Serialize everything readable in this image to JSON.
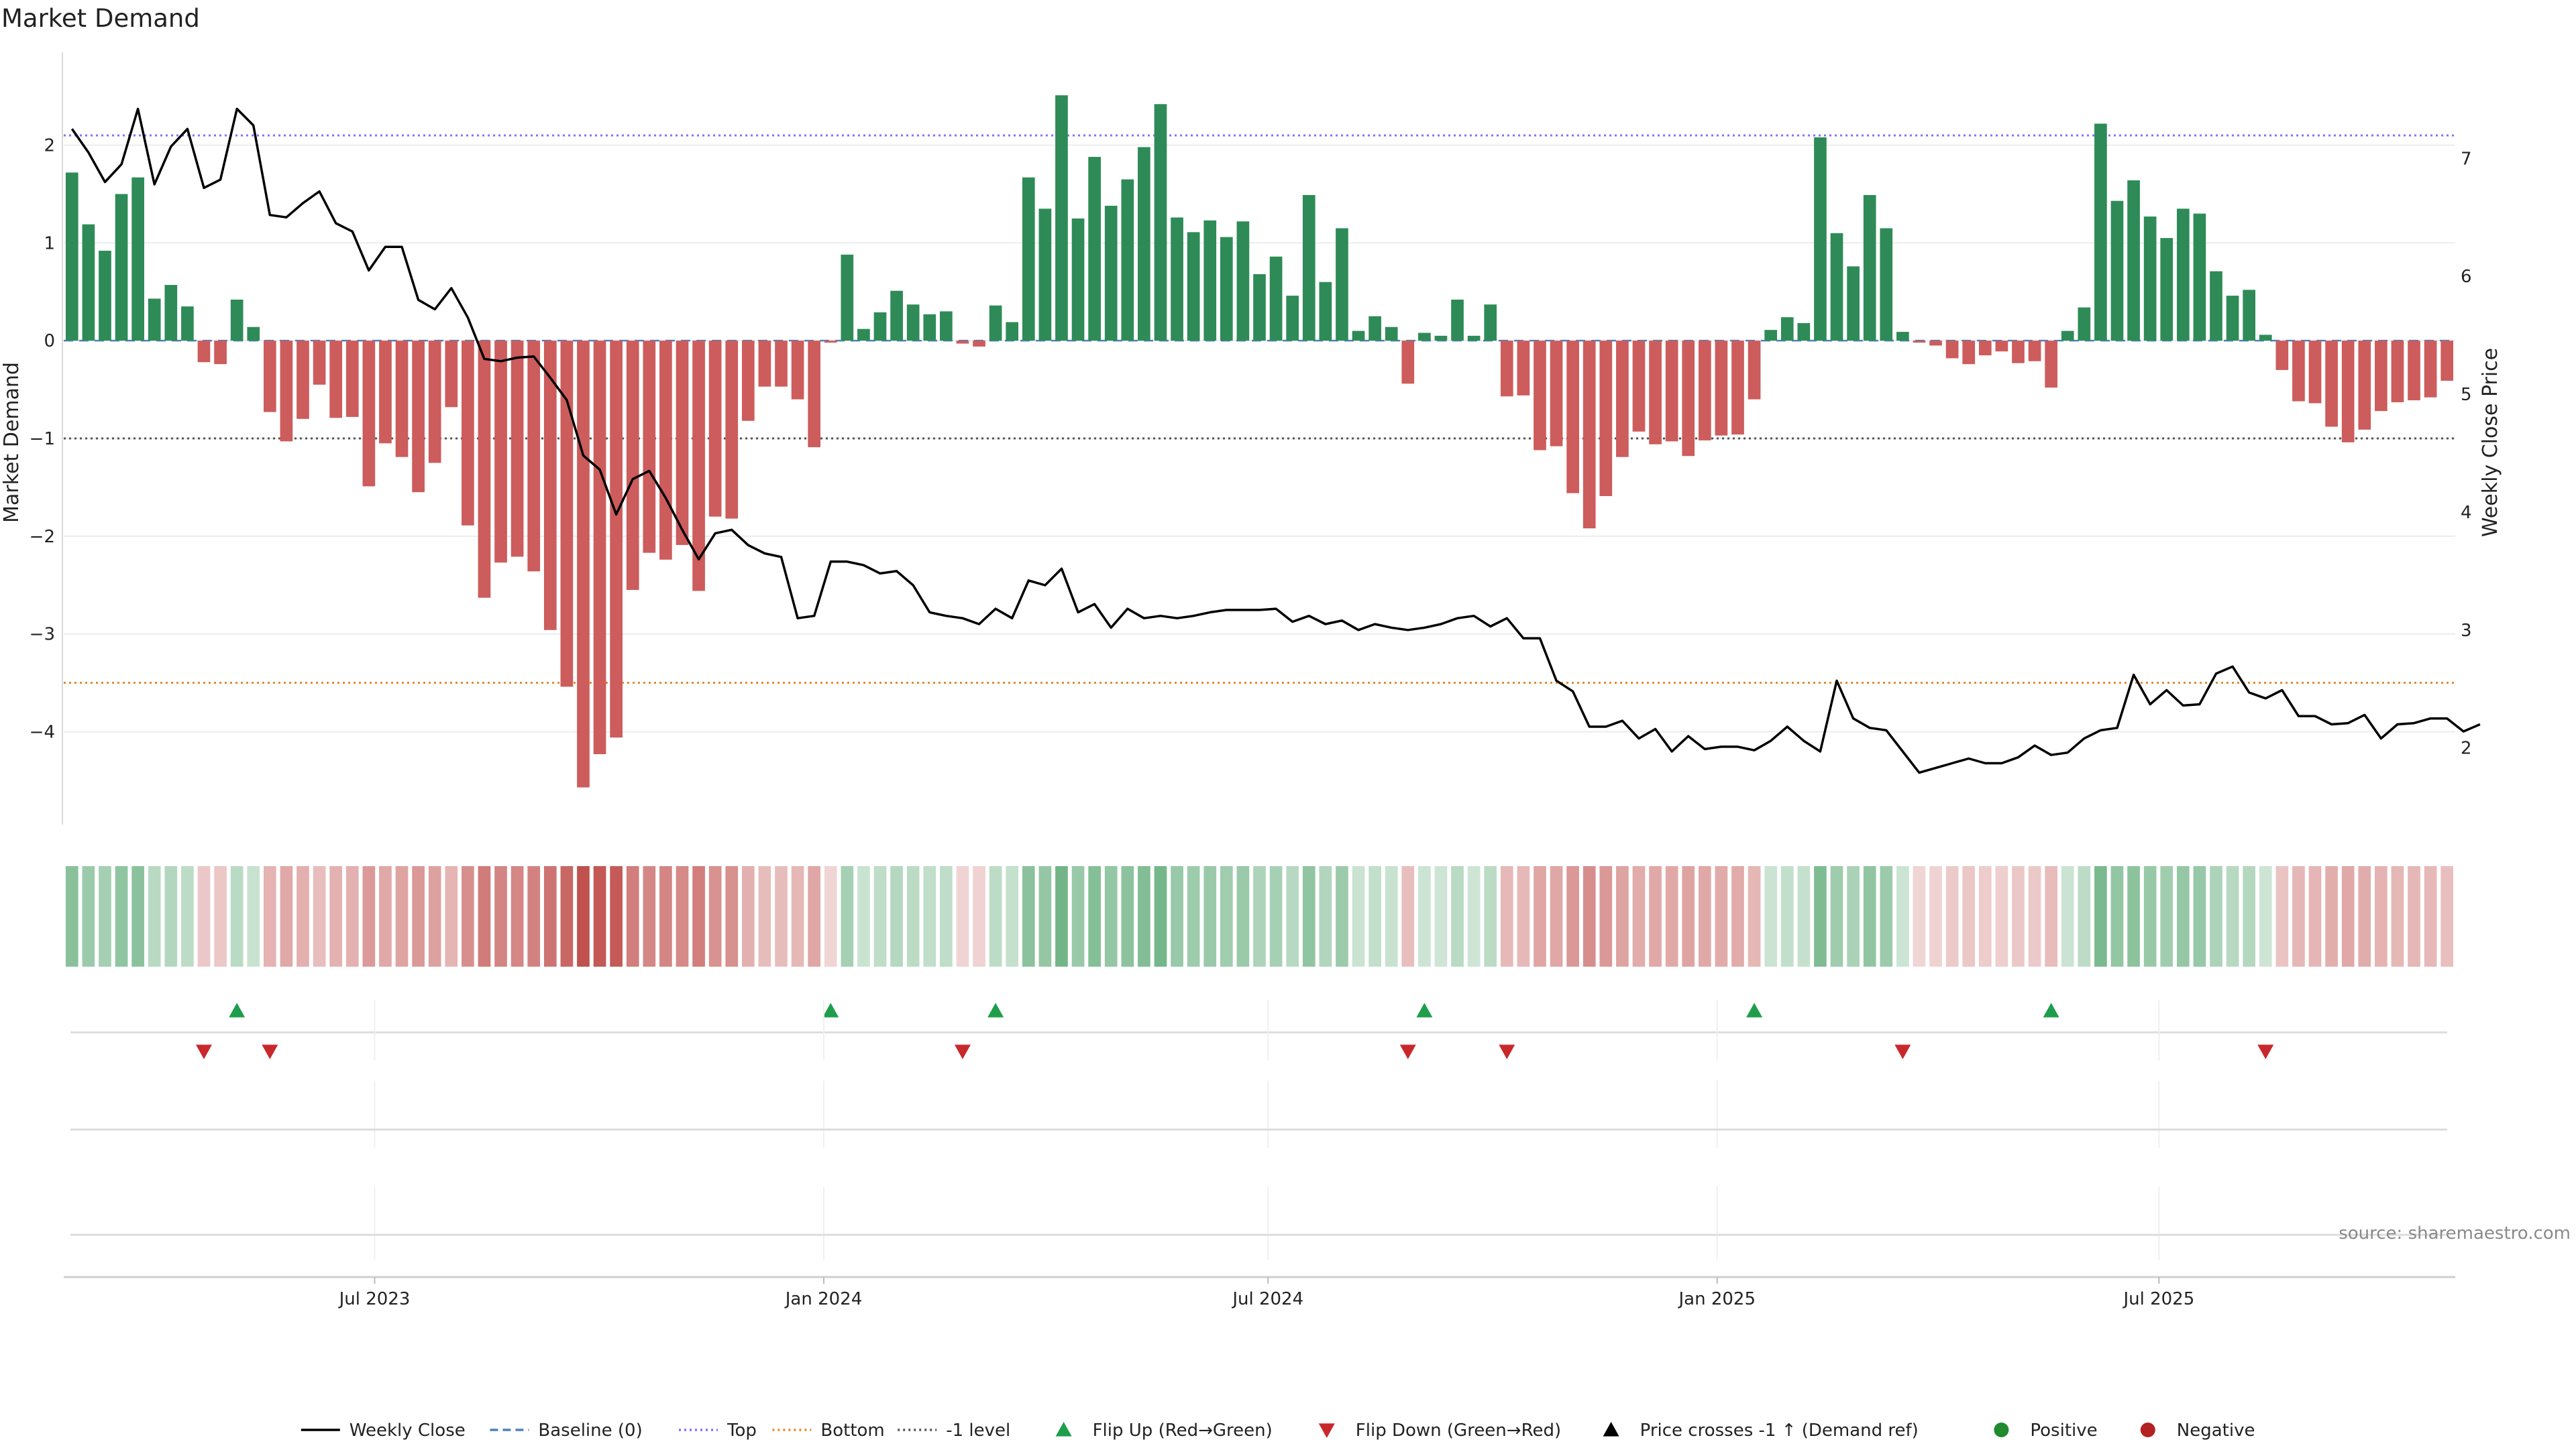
{
  "chart_data": {
    "type": "bar",
    "title": "Market Demand",
    "ylabel": "Market Demand",
    "ylabel_right": "Weekly Close Price",
    "ylim": [
      -4.95,
      2.95
    ],
    "ylim_right": [
      1.35,
      7.9
    ],
    "yticks": [
      -4,
      -3,
      -2,
      -1,
      0,
      1,
      2
    ],
    "yticks_right": [
      2,
      3,
      4,
      5,
      6,
      7
    ],
    "x_start": "2023-02-27",
    "x_end": "2025-10-27",
    "xticks": [
      {
        "date": "2023-07-01",
        "label": "Jul 2023"
      },
      {
        "date": "2024-01-01",
        "label": "Jan 2024"
      },
      {
        "date": "2024-07-01",
        "label": "Jul 2024"
      },
      {
        "date": "2025-01-01",
        "label": "Jan 2025"
      },
      {
        "date": "2025-07-01",
        "label": "Jul 2025"
      }
    ],
    "colors": {
      "positive": "#2e8b57",
      "negative": "#cd5c5c",
      "price": "#000000",
      "baseline": "#4f81bd",
      "top": "#8470ff",
      "bottom": "#e8892c",
      "minus_one": "#555555",
      "flip_up": "#1e9e4a",
      "flip_down": "#c8282c",
      "pos_dot": "#1f8a2e",
      "neg_dot": "#b22222"
    },
    "levels": {
      "baseline": 0,
      "top": 2.1,
      "bottom": -3.5,
      "minus_one": -1
    },
    "series": [
      {
        "name": "Market Demand",
        "values": [
          1.72,
          1.19,
          0.92,
          1.5,
          1.67,
          0.43,
          0.57,
          0.35,
          -0.22,
          -0.24,
          0.42,
          0.14,
          -0.73,
          -1.03,
          -0.8,
          -0.45,
          -0.79,
          -0.78,
          -1.49,
          -1.05,
          -1.19,
          -1.55,
          -1.25,
          -0.68,
          -1.89,
          -2.63,
          -2.27,
          -2.21,
          -2.36,
          -2.96,
          -3.54,
          -4.57,
          -4.23,
          -4.06,
          -2.55,
          -2.17,
          -2.24,
          -2.09,
          -2.56,
          -1.8,
          -1.82,
          -0.82,
          -0.47,
          -0.47,
          -0.6,
          -1.09,
          -0.02,
          0.88,
          0.12,
          0.29,
          0.51,
          0.37,
          0.27,
          0.3,
          -0.03,
          -0.06,
          0.36,
          0.19,
          1.67,
          1.35,
          2.51,
          1.25,
          1.88,
          1.38,
          1.65,
          1.98,
          2.42,
          1.26,
          1.11,
          1.23,
          1.06,
          1.22,
          0.68,
          0.86,
          0.46,
          1.49,
          0.6,
          1.15,
          0.1,
          0.25,
          0.14,
          -0.44,
          0.08,
          0.05,
          0.42,
          0.05,
          0.37,
          -0.57,
          -0.56,
          -1.12,
          -1.08,
          -1.56,
          -1.92,
          -1.59,
          -1.19,
          -0.93,
          -1.06,
          -1.03,
          -1.18,
          -1.02,
          -0.97,
          -0.96,
          -0.6,
          0.11,
          0.24,
          0.18,
          2.08,
          1.1,
          0.76,
          1.49,
          1.15,
          0.09,
          -0.02,
          -0.05,
          -0.18,
          -0.24,
          -0.15,
          -0.11,
          -0.23,
          -0.21,
          -0.48,
          0.1,
          0.34,
          2.22,
          1.43,
          1.64,
          1.27,
          1.05,
          1.35,
          1.3,
          0.71,
          0.46,
          0.52,
          0.06,
          -0.3,
          -0.62,
          -0.64,
          -0.88,
          -1.04,
          -0.91,
          -0.72,
          -0.63,
          -0.61,
          -0.58,
          -0.41
        ]
      },
      {
        "name": "Weekly Close",
        "values": [
          7.25,
          7.05,
          6.8,
          6.95,
          7.42,
          6.78,
          7.1,
          7.25,
          6.75,
          6.82,
          7.42,
          7.28,
          6.52,
          6.5,
          6.62,
          6.72,
          6.45,
          6.38,
          6.05,
          6.25,
          6.25,
          5.8,
          5.72,
          5.9,
          5.65,
          5.3,
          5.28,
          5.31,
          5.32,
          5.14,
          4.95,
          4.48,
          4.36,
          3.98,
          4.28,
          4.35,
          4.12,
          3.85,
          3.6,
          3.82,
          3.85,
          3.72,
          3.65,
          3.62,
          3.1,
          3.12,
          3.58,
          3.58,
          3.55,
          3.48,
          3.5,
          3.38,
          3.15,
          3.12,
          3.1,
          3.05,
          3.18,
          3.1,
          3.42,
          3.38,
          3.52,
          3.15,
          3.22,
          3.02,
          3.18,
          3.1,
          3.12,
          3.1,
          3.12,
          3.15,
          3.17,
          3.17,
          3.17,
          3.18,
          3.07,
          3.12,
          3.05,
          3.08,
          3.0,
          3.05,
          3.02,
          3.0,
          3.02,
          3.05,
          3.1,
          3.12,
          3.03,
          3.1,
          2.93,
          2.93,
          2.57,
          2.48,
          2.18,
          2.18,
          2.23,
          2.08,
          2.16,
          1.97,
          2.1,
          1.99,
          2.01,
          2.01,
          1.98,
          2.06,
          2.18,
          2.06,
          1.97,
          2.57,
          2.25,
          2.17,
          2.15,
          1.97,
          1.79,
          1.83,
          1.87,
          1.91,
          1.87,
          1.87,
          1.92,
          2.02,
          1.94,
          1.96,
          2.08,
          2.15,
          2.17,
          2.62,
          2.37,
          2.49,
          2.36,
          2.37,
          2.63,
          2.69,
          2.47,
          2.42,
          2.49,
          2.27,
          2.27,
          2.2,
          2.21,
          2.28,
          2.08,
          2.2,
          2.21,
          2.25,
          2.25,
          2.14,
          2.2
        ]
      }
    ],
    "flip_up_index": [
      10,
      46,
      56,
      82,
      102,
      120
    ],
    "flip_down_index": [
      8,
      12,
      54,
      81,
      87,
      111,
      133
    ],
    "legend": [
      {
        "label": "Weekly Close",
        "kind": "line-solid",
        "color": "#000000"
      },
      {
        "label": "Baseline (0)",
        "kind": "line-dash",
        "color": "#4f81bd"
      },
      {
        "label": "Top",
        "kind": "line-dot",
        "color": "#8470ff"
      },
      {
        "label": "Bottom",
        "kind": "line-dot",
        "color": "#e8892c"
      },
      {
        "label": "-1 level",
        "kind": "line-dot",
        "color": "#555555"
      },
      {
        "label": "Flip Up (Red→Green)",
        "kind": "tri-up",
        "color": "#1e9e4a"
      },
      {
        "label": "Flip Down (Green→Red)",
        "kind": "tri-down",
        "color": "#c8282c"
      },
      {
        "label": "Price crosses -1 ↑ (Demand ref)",
        "kind": "tri-up",
        "color": "#000000"
      },
      {
        "label": "Positive",
        "kind": "dot",
        "color": "#1f8a2e"
      },
      {
        "label": "Negative",
        "kind": "dot",
        "color": "#b22222"
      }
    ],
    "legend_placement": "bottom",
    "grid": true
  },
  "source": "source: sharemaestro.com"
}
